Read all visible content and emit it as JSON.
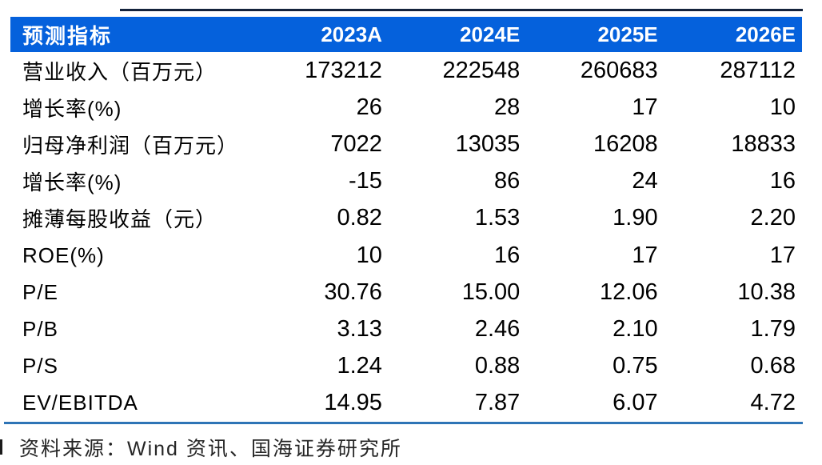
{
  "colors": {
    "header_bg": "#0561DC",
    "header_text": "#FFFFFF",
    "bottom_divider": "#2E74B6",
    "top_line": "#14233C",
    "body_text": "#000000"
  },
  "table": {
    "header": {
      "label": "预测指标",
      "cols": [
        "2023A",
        "2024E",
        "2025E",
        "2026E"
      ]
    },
    "rows": [
      {
        "label": "营业收入（百万元）",
        "values": [
          "173212",
          "222548",
          "260683",
          "287112"
        ]
      },
      {
        "label": "增长率(%)",
        "values": [
          "26",
          "28",
          "17",
          "10"
        ]
      },
      {
        "label": "归母净利润（百万元）",
        "values": [
          "7022",
          "13035",
          "16208",
          "18833"
        ]
      },
      {
        "label": "增长率(%)",
        "values": [
          "-15",
          "86",
          "24",
          "16"
        ]
      },
      {
        "label": "摊薄每股收益（元）",
        "values": [
          "0.82",
          "1.53",
          "1.90",
          "2.20"
        ]
      },
      {
        "label": "ROE(%)",
        "values": [
          "10",
          "16",
          "17",
          "17"
        ]
      },
      {
        "label": "P/E",
        "values": [
          "30.76",
          "15.00",
          "12.06",
          "10.38"
        ]
      },
      {
        "label": "P/B",
        "values": [
          "3.13",
          "2.46",
          "2.10",
          "1.79"
        ]
      },
      {
        "label": "P/S",
        "values": [
          "1.24",
          "0.88",
          "0.75",
          "0.68"
        ]
      },
      {
        "label": "EV/EBITDA",
        "values": [
          "14.95",
          "7.87",
          "6.07",
          "4.72"
        ]
      }
    ]
  },
  "footer": {
    "source": "资料来源：Wind 资讯、国海证券研究所"
  },
  "chart_data": {
    "type": "table",
    "columns": [
      "预测指标",
      "2023A",
      "2024E",
      "2025E",
      "2026E"
    ],
    "rows": [
      [
        "营业收入（百万元）",
        173212,
        222548,
        260683,
        287112
      ],
      [
        "增长率(%)",
        26,
        28,
        17,
        10
      ],
      [
        "归母净利润（百万元）",
        7022,
        13035,
        16208,
        18833
      ],
      [
        "增长率(%)",
        -15,
        86,
        24,
        16
      ],
      [
        "摊薄每股收益（元）",
        0.82,
        1.53,
        1.9,
        2.2
      ],
      [
        "ROE(%)",
        10,
        16,
        17,
        17
      ],
      [
        "P/E",
        30.76,
        15.0,
        12.06,
        10.38
      ],
      [
        "P/B",
        3.13,
        2.46,
        2.1,
        1.79
      ],
      [
        "P/S",
        1.24,
        0.88,
        0.75,
        0.68
      ],
      [
        "EV/EBITDA",
        14.95,
        7.87,
        6.07,
        4.72
      ]
    ],
    "source_note": "资料来源：Wind 资讯、国海证券研究所"
  }
}
